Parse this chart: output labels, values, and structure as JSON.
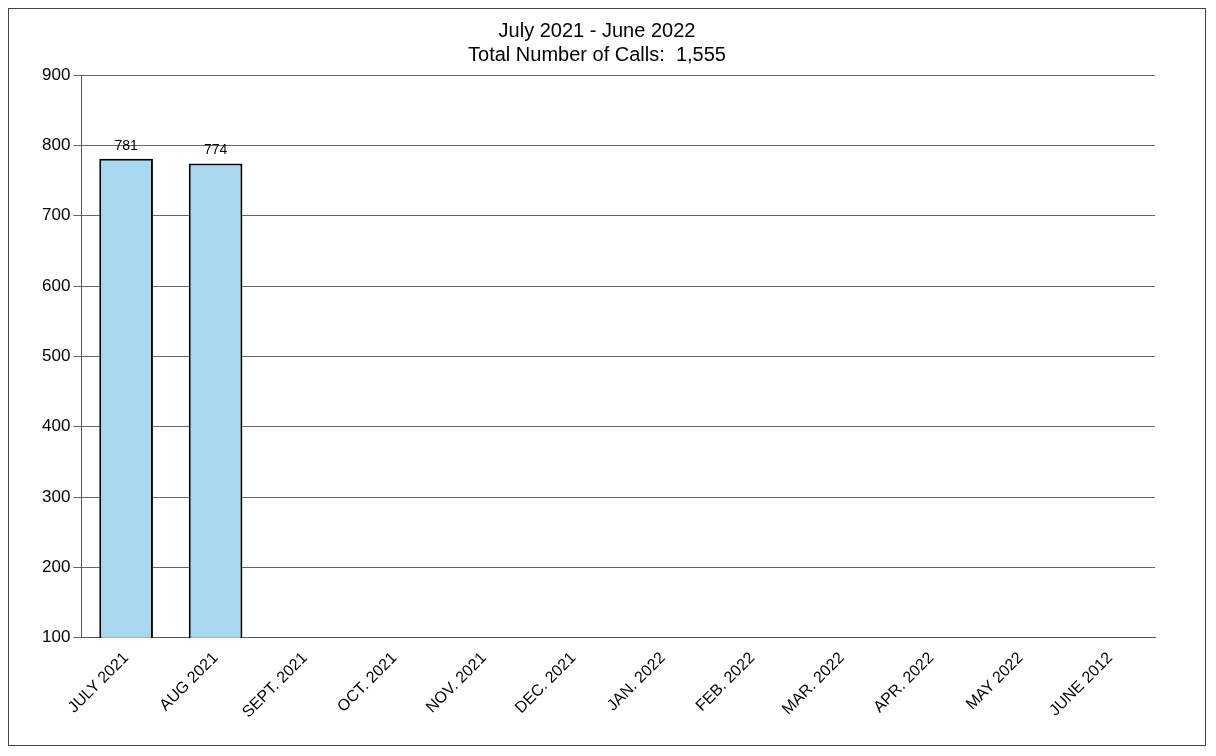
{
  "chart_data": {
    "type": "bar",
    "title": "July 2021 - June 2022",
    "subtitle": "Total Number of Calls:  1,555",
    "categories": [
      "JULY 2021",
      "AUG 2021",
      "SEPT. 2021",
      "OCT. 2021",
      "NOV. 2021",
      "DEC. 2021",
      "JAN. 2022",
      "FEB. 2022",
      "MAR. 2022",
      "APR. 2022",
      "MAY 2022",
      "JUNE 2012"
    ],
    "values": [
      781,
      774,
      null,
      null,
      null,
      null,
      null,
      null,
      null,
      null,
      null,
      null
    ],
    "color": "#a8d8f0",
    "ylim": [
      100,
      900
    ],
    "yticks": [
      100,
      200,
      300,
      400,
      500,
      600,
      700,
      800,
      900
    ],
    "grid": "y",
    "data_labels": true,
    "legend": false
  }
}
